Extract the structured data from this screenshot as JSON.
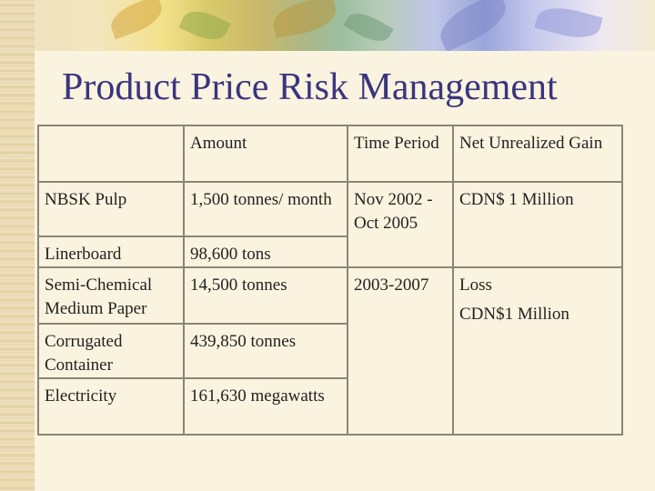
{
  "slide": {
    "title": "Product Price Risk Management"
  },
  "table": {
    "headers": {
      "product": "",
      "amount": "Amount",
      "time_period": "Time Period",
      "net_unrealized_gain": "Net Unrealized Gain"
    },
    "rows": [
      {
        "product": "NBSK Pulp",
        "amount": "1,500 tonnes/ month"
      },
      {
        "product": "Linerboard",
        "amount": "98,600 tons"
      },
      {
        "product": "Semi-Chemical Medium Paper",
        "amount": "14,500 tonnes"
      },
      {
        "product": "Corrugated Container",
        "amount": "439,850 tonnes"
      },
      {
        "product": "Electricity",
        "amount": "161,630 megawatts"
      }
    ],
    "group1": {
      "time_period": "Nov 2002 - Oct 2005",
      "gain": "CDN$ 1 Million"
    },
    "group2": {
      "time_period": "2003-2007",
      "gain_line1": "Loss",
      "gain_line2": "CDN$1 Million"
    }
  }
}
